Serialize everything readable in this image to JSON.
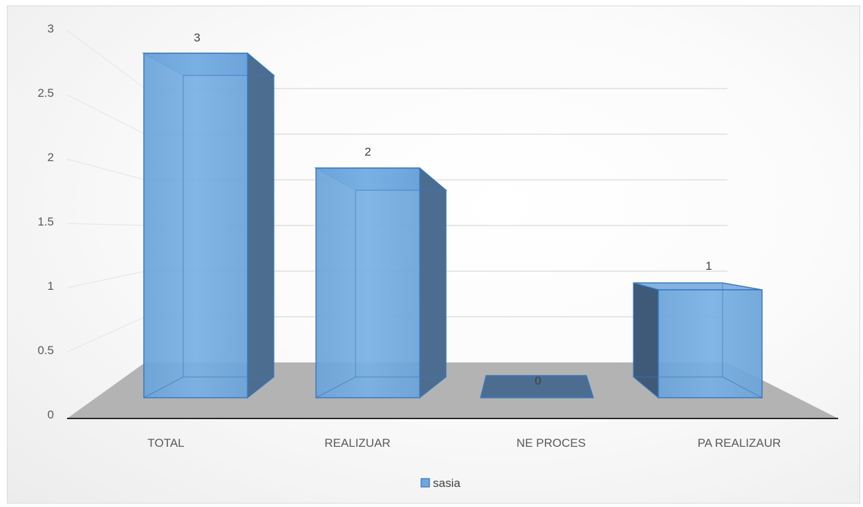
{
  "chart_data": {
    "type": "bar",
    "categories": [
      "TOTAL",
      "REALIZUAR",
      "NE PROCES",
      "PA REALIZAUR"
    ],
    "series": [
      {
        "name": "sasia",
        "values": [
          3,
          2,
          0,
          1
        ]
      }
    ],
    "data_labels": [
      "3",
      "2",
      "0",
      "1"
    ],
    "y_ticks": [
      "0",
      "0.5",
      "1",
      "1.5",
      "2",
      "2.5",
      "3"
    ],
    "ylim": [
      0,
      3
    ],
    "grid": true,
    "legend_position": "bottom",
    "style": "3d-clustered-column",
    "colors": {
      "bar_front": "#6FA8DC",
      "bar_front_light": "#7DB4E6",
      "bar_edge": "#3A78C0",
      "bar_side": "#4C6D8F",
      "bar_side_dark": "#3E5A78",
      "floor": "#b3b3b3",
      "gridline": "#d9d9d9",
      "axis": "#262626"
    }
  }
}
